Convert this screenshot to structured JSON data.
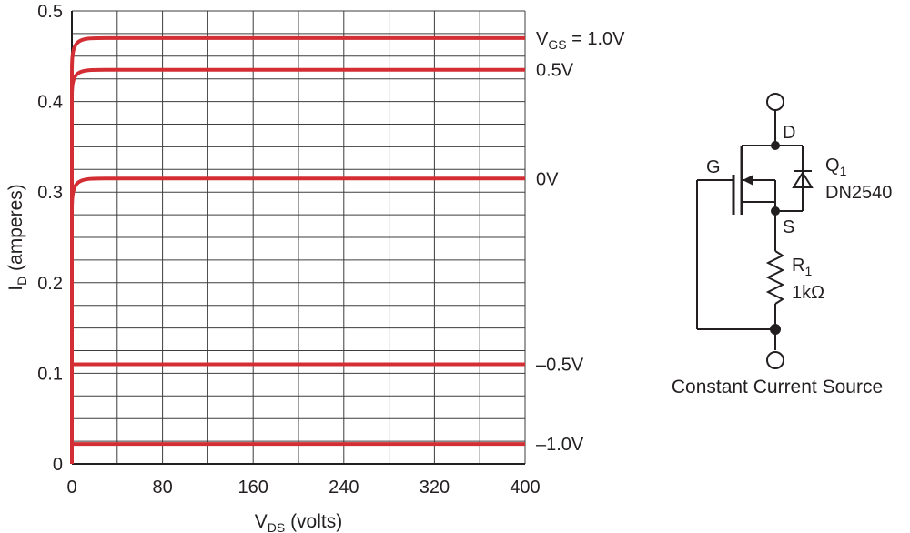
{
  "chart_data": {
    "type": "line",
    "xlabel": {
      "main": "V",
      "sub": "DS",
      "rest": " (volts)"
    },
    "ylabel": {
      "main": "I",
      "sub": "D",
      "rest": " (amperes)"
    },
    "xlim": [
      0,
      400
    ],
    "ylim": [
      0,
      0.5
    ],
    "x_ticks": [
      "0",
      "80",
      "160",
      "240",
      "320",
      "400"
    ],
    "y_ticks": [
      "0",
      "0.1",
      "0.2",
      "0.3",
      "0.4",
      "0.5"
    ],
    "grid": true,
    "color": "#d42e35",
    "series": [
      {
        "name": "V_GS = 1.0V",
        "label": {
          "prefix": "V",
          "sub": "GS",
          "rest": " = 1.0V"
        },
        "start": 0.435,
        "level": 0.47
      },
      {
        "name": "0.5V",
        "label": {
          "prefix": "0.5V",
          "sub": "",
          "rest": ""
        },
        "start": 0.405,
        "level": 0.435
      },
      {
        "name": "0V",
        "label": {
          "prefix": "0V",
          "sub": "",
          "rest": ""
        },
        "start": 0.28,
        "level": 0.315
      },
      {
        "name": "–0.5V",
        "label": {
          "prefix": "–0.5V",
          "sub": "",
          "rest": ""
        },
        "start": 0.11,
        "level": 0.11
      },
      {
        "name": "–1.0V",
        "label": {
          "prefix": "–1.0V",
          "sub": "",
          "rest": ""
        },
        "start": 0.022,
        "level": 0.022
      }
    ]
  },
  "circuit": {
    "drain_label": "D",
    "gate_label": "G",
    "source_label": "S",
    "transistor": {
      "main": "Q",
      "sub": "1",
      "part": "DN2540"
    },
    "resistor": {
      "main": "R",
      "sub": "1",
      "value": "1kΩ"
    },
    "caption": "Constant Current Source"
  }
}
